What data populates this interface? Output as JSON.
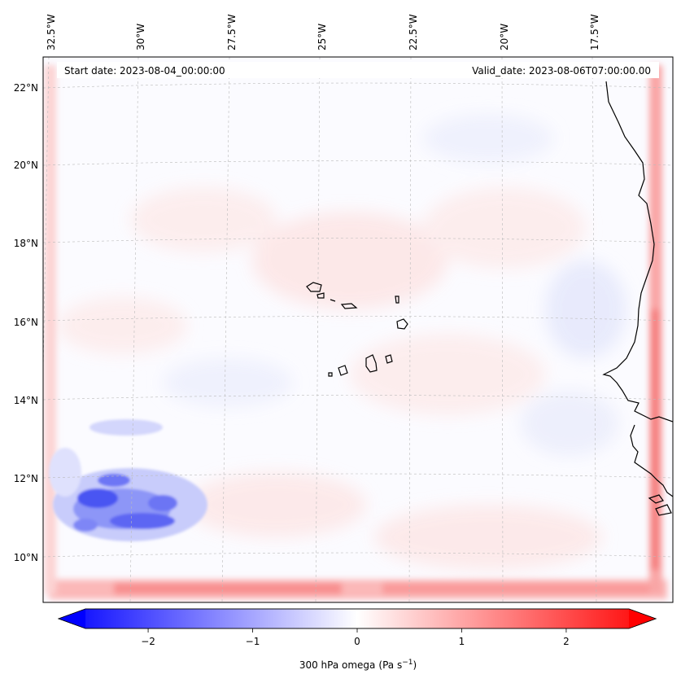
{
  "header": {
    "start_date": "Start date: 2023-08-04_00:00:00",
    "valid_date": "Valid_date: 2023-08-06T07:00:00.00"
  },
  "longitude_labels": [
    "32.5°W",
    "30°W",
    "27.5°W",
    "25°W",
    "22.5°W",
    "20°W",
    "17.5°W"
  ],
  "latitude_labels": [
    "22°N",
    "20°N",
    "18°N",
    "16°N",
    "14°N",
    "12°N",
    "10°N"
  ],
  "colorbar": {
    "variable": "300 hPa omega",
    "units_prefix": "(Pa s",
    "units_exponent": "−1",
    "units_suffix": ")",
    "ticks": [
      "−2",
      "−1",
      "0",
      "1",
      "2"
    ],
    "tick_values": [
      -2,
      -1,
      0,
      1,
      2
    ],
    "range": [
      -2.6,
      2.6
    ],
    "extend": "both",
    "colormap": "bwr",
    "colors": {
      "min": "#0000ff",
      "mid": "#ffffff",
      "max": "#ff0000"
    }
  },
  "chart_data": {
    "type": "heatmap",
    "title": "Start date: 2023-08-04_00:00:00 | Valid_date: 2023-08-06T07:00:00.00",
    "field": "300 hPa omega (Pa s^-1)",
    "lon_range": [
      -33,
      -15.5
    ],
    "lat_range": [
      9,
      22.5
    ],
    "colorbar_range": [
      -2.6,
      2.6
    ],
    "features": [
      {
        "name": "strong ascent (negative omega) cluster",
        "lon": -30.5,
        "lat": 11.2,
        "value": -1.8
      },
      {
        "name": "positive omega band along southern edge",
        "lon": -25,
        "lat": 9.3,
        "value": 1.2
      },
      {
        "name": "positive omega band along eastern edge",
        "lon": -16.5,
        "lat": 16,
        "value": 1.5
      },
      {
        "name": "weak ascent area west of coast",
        "lon": -18,
        "lat": 15.8,
        "value": -0.4
      }
    ],
    "coastline": "West Africa (Senegal / Mauritania coast) and Cape Verde islands"
  }
}
